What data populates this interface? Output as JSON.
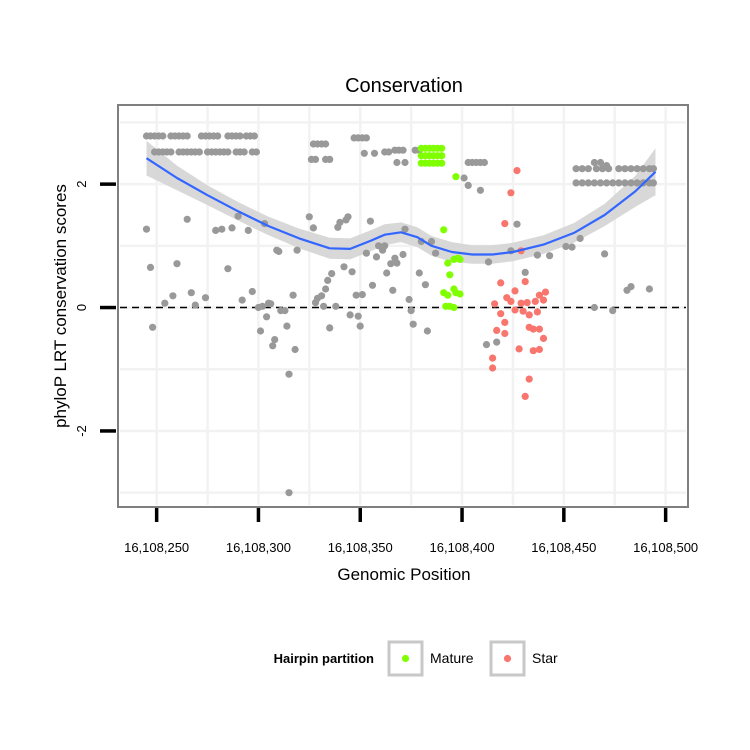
{
  "chart_data": {
    "type": "scatter",
    "title": "Conservation",
    "xlabel": "Genomic Position",
    "ylabel": "phyloP LRT conservation scores",
    "xlim": [
      16108232,
      16108510
    ],
    "ylim": [
      -3.2,
      3.25
    ],
    "x_ticks": [
      16108250,
      16108300,
      16108350,
      16108400,
      16108450,
      16108500
    ],
    "x_tick_labels": [
      "16,108,250",
      "16,108,300",
      "16,108,350",
      "16,108,400",
      "16,108,450",
      "16,108,500"
    ],
    "y_ticks": [
      -2,
      0,
      2
    ],
    "y_tick_labels": [
      "-2",
      "0",
      "2"
    ],
    "reference_line": {
      "y": 0,
      "style": "dashed"
    },
    "grid": true,
    "legend": {
      "title": "Hairpin partition",
      "position": "bottom",
      "entries": [
        {
          "label": "Mature",
          "color": "#7fff00"
        },
        {
          "label": "Star",
          "color": "#f8766d"
        }
      ]
    },
    "colors": {
      "other": "#999999",
      "mature": "#7fff00",
      "star": "#f8766d",
      "smooth": "#3366ff",
      "band": "#d4d4d4"
    },
    "smooth": {
      "x": [
        16108245,
        16108260,
        16108275,
        16108290,
        16108305,
        16108320,
        16108335,
        16108345,
        16108355,
        16108362,
        16108370,
        16108378,
        16108385,
        16108395,
        16108405,
        16108415,
        16108425,
        16108440,
        16108455,
        16108470,
        16108485,
        16108495
      ],
      "y": [
        2.42,
        2.1,
        1.82,
        1.56,
        1.32,
        1.12,
        0.96,
        0.95,
        1.08,
        1.18,
        1.22,
        1.14,
        1.0,
        0.9,
        0.86,
        0.86,
        0.9,
        1.02,
        1.21,
        1.5,
        1.88,
        2.2
      ],
      "se": [
        0.28,
        0.2,
        0.16,
        0.15,
        0.15,
        0.16,
        0.17,
        0.17,
        0.17,
        0.17,
        0.16,
        0.16,
        0.16,
        0.16,
        0.15,
        0.15,
        0.15,
        0.15,
        0.16,
        0.18,
        0.25,
        0.38
      ]
    },
    "series": [
      {
        "name": "Other",
        "points": [
          [
            16108245,
            2.78
          ],
          [
            16108247,
            2.78
          ],
          [
            16108249,
            2.78
          ],
          [
            16108251,
            2.78
          ],
          [
            16108253,
            2.78
          ],
          [
            16108257,
            2.78
          ],
          [
            16108259,
            2.78
          ],
          [
            16108261,
            2.78
          ],
          [
            16108263,
            2.78
          ],
          [
            16108265,
            2.78
          ],
          [
            16108272,
            2.78
          ],
          [
            16108274,
            2.78
          ],
          [
            16108276,
            2.78
          ],
          [
            16108278,
            2.78
          ],
          [
            16108280,
            2.78
          ],
          [
            16108285,
            2.78
          ],
          [
            16108287,
            2.78
          ],
          [
            16108289,
            2.78
          ],
          [
            16108291,
            2.78
          ],
          [
            16108294,
            2.78
          ],
          [
            16108296,
            2.78
          ],
          [
            16108298,
            2.78
          ],
          [
            16108249,
            2.52
          ],
          [
            16108251,
            2.52
          ],
          [
            16108253,
            2.52
          ],
          [
            16108255,
            2.52
          ],
          [
            16108257,
            2.52
          ],
          [
            16108261,
            2.52
          ],
          [
            16108263,
            2.52
          ],
          [
            16108265,
            2.52
          ],
          [
            16108267,
            2.52
          ],
          [
            16108269,
            2.52
          ],
          [
            16108271,
            2.52
          ],
          [
            16108275,
            2.52
          ],
          [
            16108277,
            2.52
          ],
          [
            16108279,
            2.52
          ],
          [
            16108281,
            2.52
          ],
          [
            16108283,
            2.52
          ],
          [
            16108285,
            2.52
          ],
          [
            16108289,
            2.52
          ],
          [
            16108291,
            2.52
          ],
          [
            16108293,
            2.52
          ],
          [
            16108297,
            2.52
          ],
          [
            16108299,
            2.52
          ],
          [
            16108327,
            2.65
          ],
          [
            16108329,
            2.65
          ],
          [
            16108331,
            2.65
          ],
          [
            16108333,
            2.65
          ],
          [
            16108326,
            2.4
          ],
          [
            16108328,
            2.4
          ],
          [
            16108333,
            2.4
          ],
          [
            16108335,
            2.4
          ],
          [
            16108347,
            2.75
          ],
          [
            16108349,
            2.75
          ],
          [
            16108351,
            2.75
          ],
          [
            16108353,
            2.75
          ],
          [
            16108352,
            2.5
          ],
          [
            16108357,
            2.5
          ],
          [
            16108362,
            2.52
          ],
          [
            16108364,
            2.52
          ],
          [
            16108367,
            2.55
          ],
          [
            16108369,
            2.55
          ],
          [
            16108371,
            2.55
          ],
          [
            16108368,
            2.35
          ],
          [
            16108372,
            2.35
          ],
          [
            16108377,
            2.55
          ],
          [
            16108379,
            2.55
          ],
          [
            16108403,
            2.35
          ],
          [
            16108405,
            2.35
          ],
          [
            16108407,
            2.35
          ],
          [
            16108409,
            2.35
          ],
          [
            16108411,
            2.35
          ],
          [
            16108401,
            2.1
          ],
          [
            16108403,
            1.98
          ],
          [
            16108409,
            1.9
          ],
          [
            16108456,
            2.25
          ],
          [
            16108459,
            2.25
          ],
          [
            16108462,
            2.25
          ],
          [
            16108466,
            2.25
          ],
          [
            16108469,
            2.25
          ],
          [
            16108472,
            2.25
          ],
          [
            16108477,
            2.25
          ],
          [
            16108480,
            2.25
          ],
          [
            16108483,
            2.25
          ],
          [
            16108486,
            2.25
          ],
          [
            16108489,
            2.25
          ],
          [
            16108492,
            2.25
          ],
          [
            16108494,
            2.25
          ],
          [
            16108465,
            2.35
          ],
          [
            16108468,
            2.35
          ],
          [
            16108471,
            2.3
          ],
          [
            16108456,
            2.02
          ],
          [
            16108459,
            2.02
          ],
          [
            16108462,
            2.02
          ],
          [
            16108465,
            2.02
          ],
          [
            16108468,
            2.02
          ],
          [
            16108471,
            2.02
          ],
          [
            16108474,
            2.02
          ],
          [
            16108477,
            2.02
          ],
          [
            16108480,
            2.02
          ],
          [
            16108483,
            2.02
          ],
          [
            16108486,
            2.02
          ],
          [
            16108489,
            2.02
          ],
          [
            16108492,
            2.02
          ],
          [
            16108494,
            2.02
          ],
          [
            16108245,
            1.27
          ],
          [
            16108247,
            0.65
          ],
          [
            16108248,
            -0.32
          ],
          [
            16108254,
            0.07
          ],
          [
            16108258,
            0.19
          ],
          [
            16108260,
            0.71
          ],
          [
            16108265,
            1.43
          ],
          [
            16108267,
            0.24
          ],
          [
            16108269,
            0.04
          ],
          [
            16108274,
            0.16
          ],
          [
            16108279,
            1.25
          ],
          [
            16108282,
            1.27
          ],
          [
            16108285,
            0.63
          ],
          [
            16108287,
            1.29
          ],
          [
            16108290,
            1.48
          ],
          [
            16108292,
            0.12
          ],
          [
            16108295,
            1.25
          ],
          [
            16108297,
            0.26
          ],
          [
            16108300,
            0.0
          ],
          [
            16108301,
            -0.38
          ],
          [
            16108302,
            0.02
          ],
          [
            16108303,
            1.36
          ],
          [
            16108304,
            -0.15
          ],
          [
            16108305,
            0.07
          ],
          [
            16108306,
            0.06
          ],
          [
            16108307,
            -0.62
          ],
          [
            16108308,
            -0.52
          ],
          [
            16108309,
            0.93
          ],
          [
            16108310,
            0.91
          ],
          [
            16108311,
            -0.05
          ],
          [
            16108313,
            -0.05
          ],
          [
            16108314,
            -0.3
          ],
          [
            16108315,
            -1.08
          ],
          [
            16108315,
            -3.0
          ],
          [
            16108317,
            0.2
          ],
          [
            16108318,
            -0.68
          ],
          [
            16108319,
            0.93
          ],
          [
            16108325,
            1.47
          ],
          [
            16108327,
            1.29
          ],
          [
            16108328,
            0.08
          ],
          [
            16108329,
            0.15
          ],
          [
            16108331,
            0.19
          ],
          [
            16108332,
            0.02
          ],
          [
            16108333,
            0.3
          ],
          [
            16108334,
            0.44
          ],
          [
            16108335,
            -0.33
          ],
          [
            16108336,
            0.55
          ],
          [
            16108338,
            0.02
          ],
          [
            16108339,
            1.3
          ],
          [
            16108340,
            1.38
          ],
          [
            16108342,
            0.66
          ],
          [
            16108343,
            1.42
          ],
          [
            16108344,
            1.47
          ],
          [
            16108345,
            -0.12
          ],
          [
            16108346,
            0.58
          ],
          [
            16108348,
            0.2
          ],
          [
            16108349,
            -0.14
          ],
          [
            16108350,
            -0.3
          ],
          [
            16108351,
            0.21
          ],
          [
            16108353,
            0.88
          ],
          [
            16108355,
            1.4
          ],
          [
            16108356,
            0.36
          ],
          [
            16108358,
            0.82
          ],
          [
            16108359,
            1.0
          ],
          [
            16108361,
            0.93
          ],
          [
            16108362,
            1.0
          ],
          [
            16108363,
            0.56
          ],
          [
            16108365,
            0.71
          ],
          [
            16108366,
            0.28
          ],
          [
            16108367,
            0.8
          ],
          [
            16108368,
            0.72
          ],
          [
            16108371,
            0.86
          ],
          [
            16108372,
            1.27
          ],
          [
            16108374,
            0.13
          ],
          [
            16108375,
            -0.05
          ],
          [
            16108376,
            -0.27
          ],
          [
            16108379,
            0.56
          ],
          [
            16108380,
            1.07
          ],
          [
            16108382,
            0.37
          ],
          [
            16108383,
            -0.38
          ],
          [
            16108385,
            1.07
          ],
          [
            16108387,
            0.88
          ],
          [
            16108412,
            -0.6
          ],
          [
            16108413,
            0.74
          ],
          [
            16108417,
            -0.56
          ],
          [
            16108424,
            0.92
          ],
          [
            16108427,
            1.35
          ],
          [
            16108431,
            0.57
          ],
          [
            16108437,
            0.85
          ],
          [
            16108443,
            0.84
          ],
          [
            16108451,
            0.99
          ],
          [
            16108454,
            0.98
          ],
          [
            16108458,
            1.12
          ],
          [
            16108465,
            0.0
          ],
          [
            16108470,
            0.87
          ],
          [
            16108474,
            -0.05
          ],
          [
            16108481,
            0.28
          ],
          [
            16108483,
            0.34
          ],
          [
            16108492,
            0.3
          ]
        ]
      },
      {
        "name": "Mature",
        "points": [
          [
            16108380,
            2.58
          ],
          [
            16108382,
            2.58
          ],
          [
            16108384,
            2.58
          ],
          [
            16108386,
            2.58
          ],
          [
            16108388,
            2.58
          ],
          [
            16108390,
            2.58
          ],
          [
            16108380,
            2.46
          ],
          [
            16108382,
            2.46
          ],
          [
            16108384,
            2.46
          ],
          [
            16108386,
            2.46
          ],
          [
            16108388,
            2.46
          ],
          [
            16108390,
            2.46
          ],
          [
            16108380,
            2.34
          ],
          [
            16108382,
            2.34
          ],
          [
            16108384,
            2.34
          ],
          [
            16108386,
            2.34
          ],
          [
            16108388,
            2.34
          ],
          [
            16108390,
            2.34
          ],
          [
            16108397,
            2.12
          ],
          [
            16108391,
            1.26
          ],
          [
            16108396,
            0.78
          ],
          [
            16108398,
            0.8
          ],
          [
            16108399,
            0.78
          ],
          [
            16108393,
            0.72
          ],
          [
            16108394,
            0.53
          ],
          [
            16108396,
            0.3
          ],
          [
            16108391,
            0.24
          ],
          [
            16108397,
            0.24
          ],
          [
            16108399,
            0.22
          ],
          [
            16108393,
            0.2
          ],
          [
            16108392,
            0.02
          ],
          [
            16108394,
            0.02
          ],
          [
            16108396,
            0.0
          ]
        ]
      },
      {
        "name": "Star",
        "points": [
          [
            16108427,
            2.22
          ],
          [
            16108424,
            1.86
          ],
          [
            16108421,
            1.36
          ],
          [
            16108429,
            0.92
          ],
          [
            16108419,
            0.4
          ],
          [
            16108426,
            0.27
          ],
          [
            16108431,
            0.42
          ],
          [
            16108441,
            0.25
          ],
          [
            16108438,
            0.2
          ],
          [
            16108422,
            0.16
          ],
          [
            16108424,
            0.1
          ],
          [
            16108416,
            0.06
          ],
          [
            16108429,
            0.07
          ],
          [
            16108432,
            0.08
          ],
          [
            16108436,
            0.1
          ],
          [
            16108440,
            0.12
          ],
          [
            16108419,
            -0.1
          ],
          [
            16108426,
            -0.04
          ],
          [
            16108430,
            -0.06
          ],
          [
            16108433,
            -0.12
          ],
          [
            16108437,
            -0.07
          ],
          [
            16108421,
            -0.24
          ],
          [
            16108433,
            -0.32
          ],
          [
            16108435,
            -0.35
          ],
          [
            16108438,
            -0.35
          ],
          [
            16108440,
            -0.5
          ],
          [
            16108417,
            -0.37
          ],
          [
            16108421,
            -0.42
          ],
          [
            16108428,
            -0.67
          ],
          [
            16108435,
            -0.7
          ],
          [
            16108438,
            -0.68
          ],
          [
            16108415,
            -0.82
          ],
          [
            16108415,
            -0.98
          ],
          [
            16108433,
            -1.16
          ],
          [
            16108431,
            -1.44
          ]
        ]
      }
    ]
  }
}
